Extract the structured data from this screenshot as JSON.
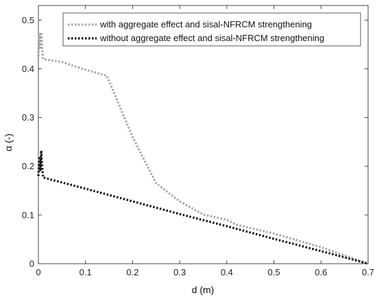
{
  "chart_data": {
    "type": "line",
    "title": "",
    "xlabel": "d (m)",
    "ylabel": "α (-)",
    "xlim": [
      0,
      0.7
    ],
    "ylim": [
      0,
      0.53
    ],
    "xticks": [
      "0",
      "0.1",
      "0.2",
      "0.3",
      "0.4",
      "0.5",
      "0.6",
      "0.7"
    ],
    "yticks": [
      "0",
      "0.1",
      "0.2",
      "0.3",
      "0.4",
      "0.5"
    ],
    "grid": false,
    "legend_position": "top-right",
    "series": [
      {
        "name": "with aggregate effect and sisal-NFRCM strengthening",
        "color": "#a6a6a6",
        "line_style": "dotted",
        "x": [
          0,
          0.002,
          0.004,
          0.006,
          0.008,
          0.01,
          0.05,
          0.1,
          0.145,
          0.15,
          0.2,
          0.25,
          0.3,
          0.35,
          0.4,
          0.42,
          0.5,
          0.6,
          0.7
        ],
        "y": [
          0.425,
          0.47,
          0.44,
          0.475,
          0.445,
          0.42,
          0.414,
          0.398,
          0.386,
          0.375,
          0.26,
          0.165,
          0.128,
          0.101,
          0.09,
          0.08,
          0.062,
          0.034,
          0.0
        ]
      },
      {
        "name": "without aggregate effect and sisal-NFRCM strengthening",
        "color": "#111111",
        "line_style": "dotted",
        "x": [
          0,
          0.002,
          0.004,
          0.006,
          0.008,
          0.01,
          0.1,
          0.2,
          0.3,
          0.4,
          0.5,
          0.6,
          0.7
        ],
        "y": [
          0.18,
          0.22,
          0.19,
          0.232,
          0.2,
          0.177,
          0.154,
          0.128,
          0.102,
          0.077,
          0.051,
          0.026,
          0.0
        ]
      }
    ]
  }
}
